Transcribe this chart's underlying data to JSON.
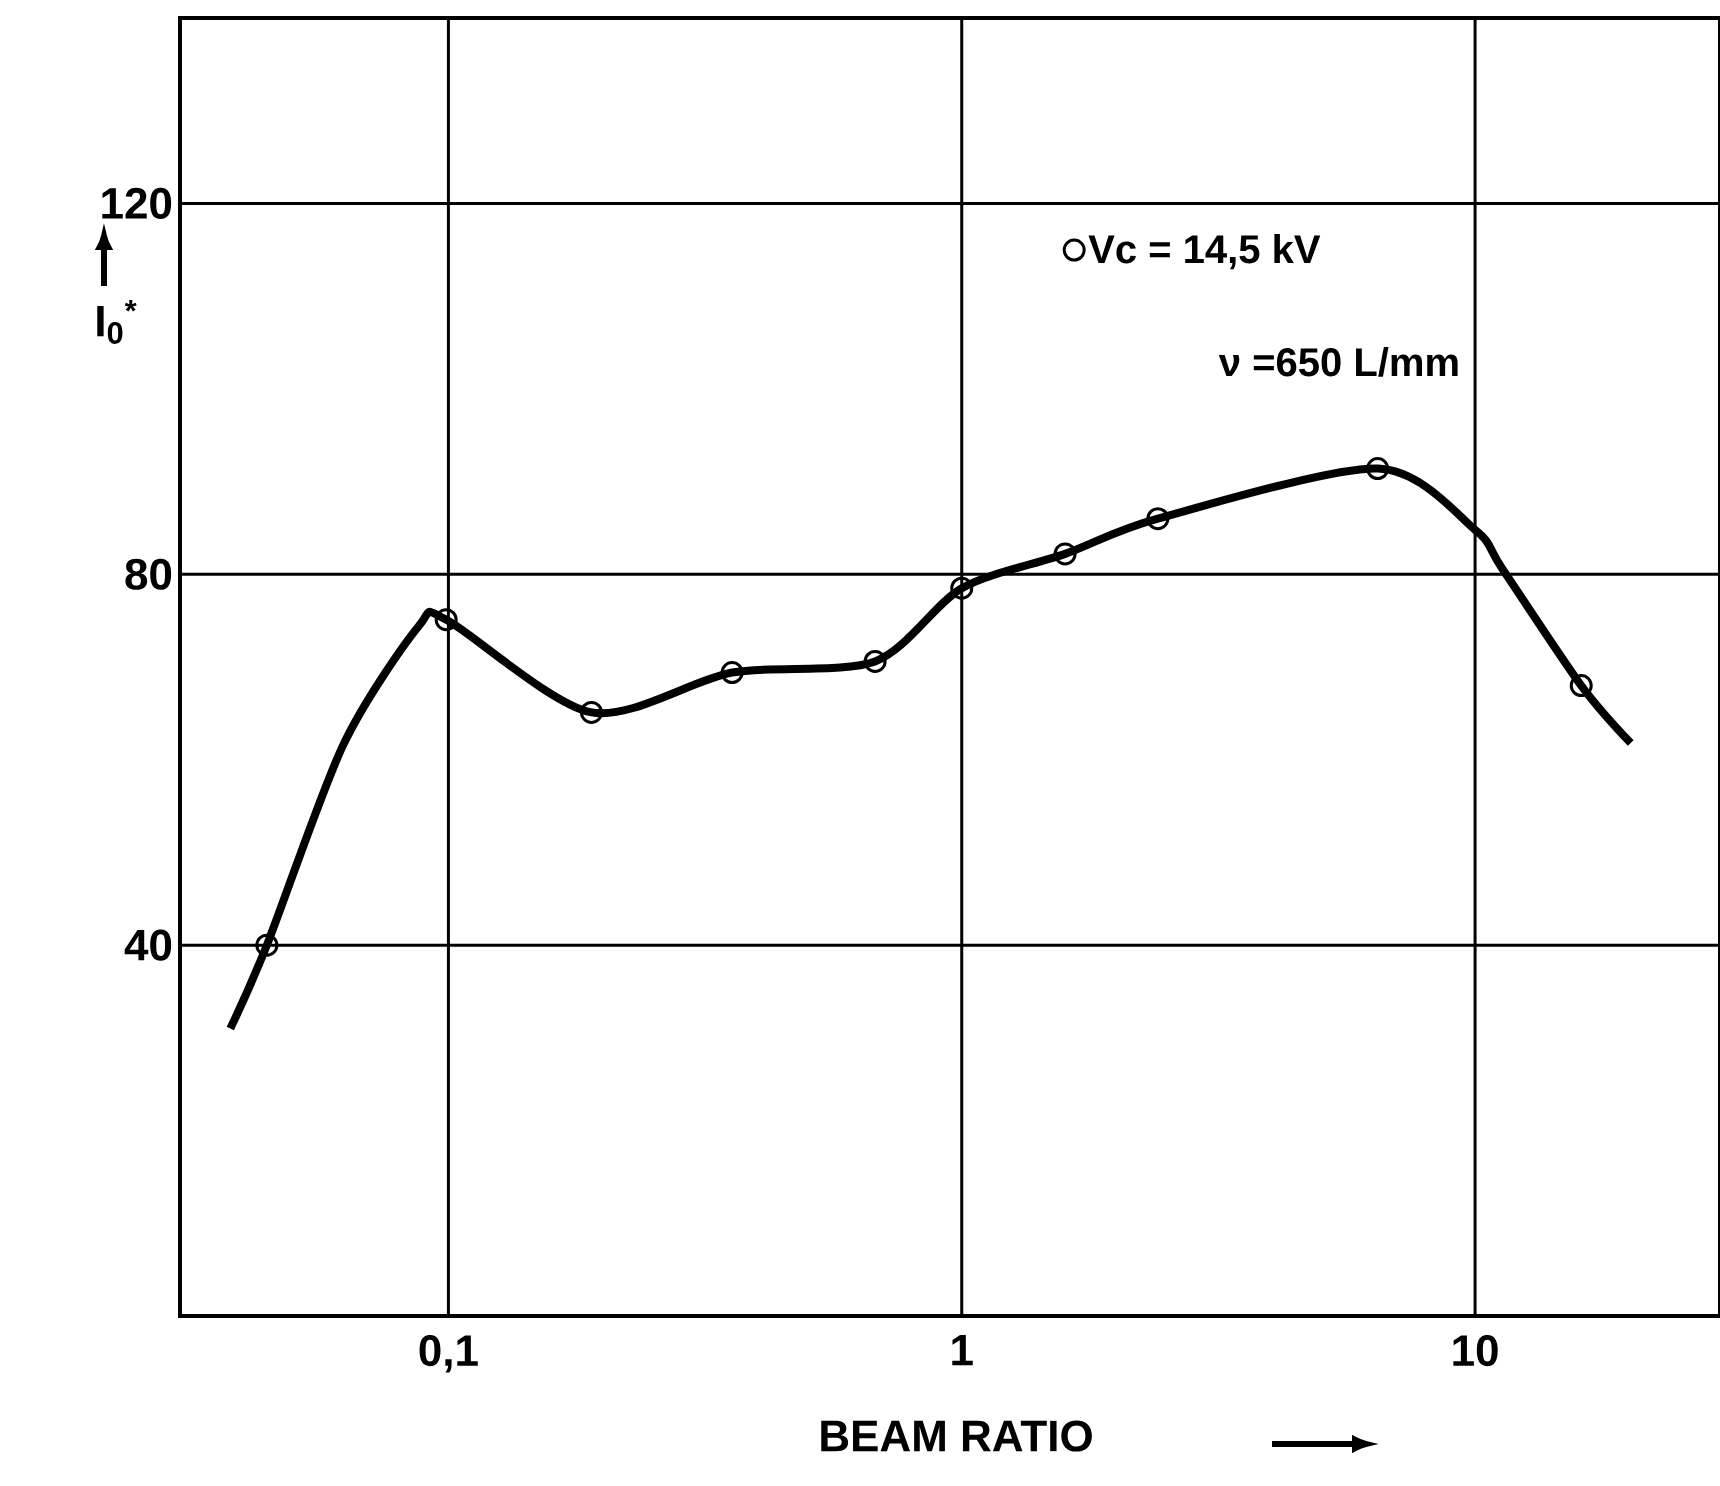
{
  "chart_data": {
    "type": "line",
    "xlabel": "BEAM RATIO",
    "ylabel": "I$_{0}$$^{*}$",
    "xlim": [
      0.03,
      30
    ],
    "ylim": [
      0,
      140
    ],
    "log": "x",
    "xticks": [
      {
        "value": 0.1,
        "label": "0,1"
      },
      1,
      10
    ],
    "yticks": [
      40,
      80,
      120
    ],
    "grid": true,
    "legend": "top right",
    "annotations": [
      "ν =650 L/mm"
    ],
    "series": [
      {
        "marker": "none",
        "color": "#000000",
        "x": [
          0.0376,
          0.0443,
          0.0624,
          0.0875,
          0.099,
          0.19,
          0.357,
          0.678,
          1.0,
          1.59,
          2.41,
          6.46,
          10,
          11.3,
          16.1,
          20.1
        ],
        "values": [
          31,
          40,
          61.6,
          74.4,
          75.1,
          65.1,
          69.4,
          70.6,
          78.5,
          82.2,
          86.0,
          91.4,
          84.8,
          80.6,
          68.0,
          61.8
        ]
      },
      {
        "name": "Vc = 14,5 kV",
        "type": "scatter",
        "marker": "circle",
        "color": "#000000",
        "x": [
          0.0443,
          0.099,
          0.19,
          0.357,
          0.678,
          1.0,
          1.59,
          2.41,
          6.46,
          16.1
        ],
        "values": [
          40,
          75.1,
          65.1,
          69.4,
          70.6,
          78.5,
          82.2,
          86.0,
          91.4,
          68.0
        ]
      }
    ]
  }
}
